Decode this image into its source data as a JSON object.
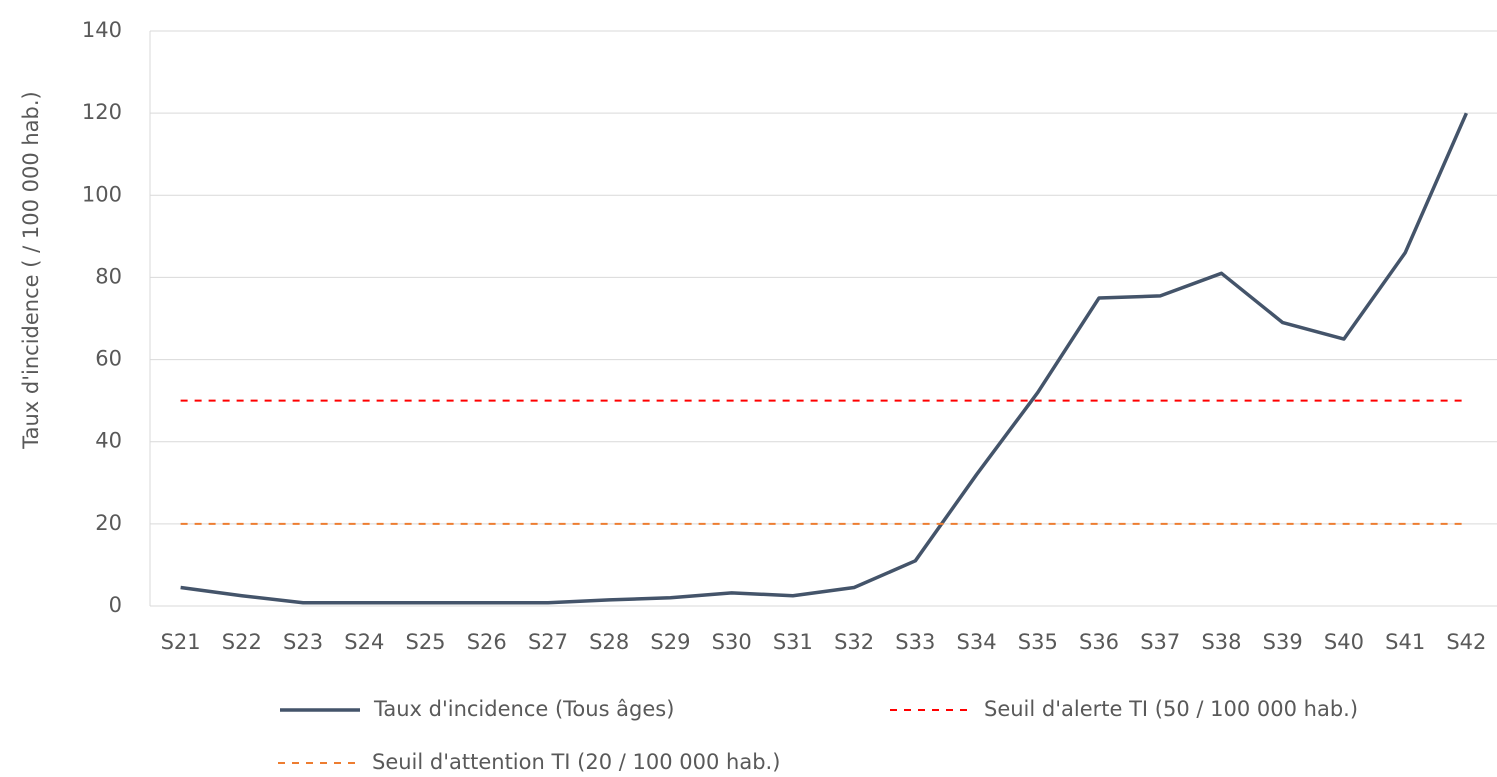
{
  "chart_data": {
    "type": "line",
    "y_label": "Taux d'incidence ( / 100 000 hab.)",
    "categories": [
      "S21",
      "S22",
      "S23",
      "S24",
      "S25",
      "S26",
      "S27",
      "S28",
      "S29",
      "S30",
      "S31",
      "S32",
      "S33",
      "S34",
      "S35",
      "S36",
      "S37",
      "S38",
      "S39",
      "S40",
      "S41",
      "S42"
    ],
    "series": [
      {
        "name": "Taux d'incidence (Tous âges)",
        "color": "#44546a",
        "line_style": "solid",
        "values": [
          4.5,
          2.5,
          0.8,
          0.8,
          0.8,
          0.8,
          0.8,
          1.5,
          2,
          3.2,
          2.5,
          4.5,
          11,
          32,
          52,
          75,
          75.5,
          81,
          69,
          65,
          86,
          120
        ]
      },
      {
        "name": "Seuil d'alerte TI (50 / 100 000 hab.)",
        "color": "#ff0000",
        "line_style": "dashed",
        "values": [
          50,
          50,
          50,
          50,
          50,
          50,
          50,
          50,
          50,
          50,
          50,
          50,
          50,
          50,
          50,
          50,
          50,
          50,
          50,
          50,
          50,
          50
        ]
      },
      {
        "name": "Seuil d'attention TI (20 / 100 000 hab.)",
        "color": "#ed7d31",
        "line_style": "dashed",
        "values": [
          20,
          20,
          20,
          20,
          20,
          20,
          20,
          20,
          20,
          20,
          20,
          20,
          20,
          20,
          20,
          20,
          20,
          20,
          20,
          20,
          20,
          20
        ]
      }
    ],
    "ylim": [
      0,
      140
    ],
    "yticks": [
      0,
      20,
      40,
      60,
      80,
      100,
      120,
      140
    ],
    "grid": true
  }
}
